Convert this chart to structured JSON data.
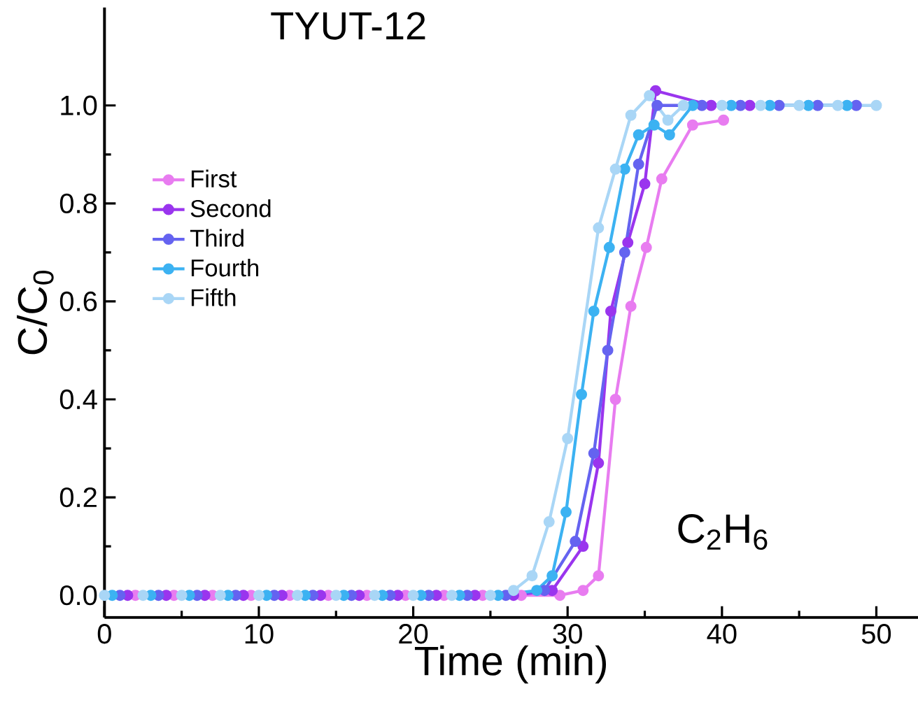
{
  "chart_data": {
    "type": "line",
    "title": "TYUT-12",
    "xlabel": "Time (min)",
    "ylabel": "C/C$_{0}$",
    "annotations": [
      "C$_{2}$H$_{6}$"
    ],
    "xlim": [
      0,
      52.7
    ],
    "ylim": [
      -0.045,
      1.2
    ],
    "xticks": [
      0,
      10,
      20,
      30,
      40,
      50
    ],
    "yticks": [
      {
        "value": 0,
        "label": "0.0"
      },
      0.2,
      0.4,
      0.6,
      0.8,
      {
        "value": 1,
        "label": "1.0"
      }
    ],
    "legend": "left",
    "marker": "circle",
    "grid": false,
    "series": [
      {
        "name": "First",
        "color": "#e87cf0",
        "x": [
          2.0,
          4.5,
          7.0,
          9.5,
          12.0,
          14.5,
          17.0,
          19.5,
          22.0,
          24.5,
          27.0,
          29.5,
          31.0,
          32.0,
          33.1,
          34.1,
          35.1,
          36.1,
          38.1,
          40.1
        ],
        "values": [
          0,
          0,
          0,
          0,
          0,
          0,
          0,
          0,
          0,
          0,
          0,
          0,
          0.01,
          0.04,
          0.4,
          0.59,
          0.71,
          0.85,
          0.96,
          0.97
        ]
      },
      {
        "name": "Second",
        "color": "#9a35ee",
        "x": [
          1.5,
          4.0,
          6.5,
          9.0,
          11.5,
          14.0,
          16.5,
          19.0,
          21.5,
          24.0,
          26.5,
          29.0,
          31.0,
          32.0,
          32.8,
          33.9,
          35.0,
          35.7,
          39.3,
          41.8
        ],
        "values": [
          0,
          0,
          0,
          0,
          0,
          0,
          0,
          0,
          0,
          0,
          0,
          0.01,
          0.1,
          0.27,
          0.58,
          0.72,
          0.84,
          1.03,
          1.0,
          1.0
        ]
      },
      {
        "name": "Third",
        "color": "#6563f0",
        "x": [
          1.0,
          3.5,
          6.0,
          8.5,
          11.0,
          13.5,
          16.0,
          18.5,
          21.0,
          23.5,
          26.0,
          28.5,
          30.5,
          31.7,
          32.6,
          33.7,
          34.6,
          35.8,
          38.7,
          41.2,
          43.7,
          46.2,
          48.7
        ],
        "values": [
          0,
          0,
          0,
          0,
          0,
          0,
          0,
          0,
          0,
          0,
          0,
          0.01,
          0.11,
          0.29,
          0.5,
          0.7,
          0.88,
          1.0,
          1.0,
          1.0,
          1.0,
          1.0,
          1.0
        ]
      },
      {
        "name": "Fourth",
        "color": "#3cb2f2",
        "x": [
          0.5,
          3.0,
          5.5,
          8.0,
          10.5,
          13.0,
          15.5,
          18.0,
          20.5,
          23.0,
          25.5,
          28.0,
          29.0,
          29.9,
          30.9,
          31.7,
          32.7,
          33.7,
          34.6,
          35.6,
          36.6,
          38.1,
          40.6,
          43.1,
          45.6,
          48.1
        ],
        "values": [
          0,
          0,
          0,
          0,
          0,
          0,
          0,
          0,
          0,
          0,
          0,
          0.01,
          0.04,
          0.17,
          0.41,
          0.58,
          0.71,
          0.87,
          0.94,
          0.96,
          0.94,
          1.0,
          1.0,
          1.0,
          1.0,
          1.0
        ]
      },
      {
        "name": "Fifth",
        "color": "#a9d6f6",
        "x": [
          0,
          2.5,
          5,
          7.5,
          10,
          12.5,
          15,
          17.5,
          20,
          22.5,
          25,
          26.5,
          27.7,
          28.8,
          30.0,
          32.0,
          33.1,
          34.1,
          35.3,
          36.5,
          37.5,
          40,
          42.5,
          45,
          47.5,
          50
        ],
        "values": [
          0,
          0,
          0,
          0,
          0,
          0,
          0,
          0,
          0,
          0,
          0,
          0.01,
          0.04,
          0.15,
          0.32,
          0.75,
          0.87,
          0.98,
          1.02,
          0.97,
          1.0,
          1.0,
          1.0,
          1.0,
          1.0,
          1.0
        ]
      }
    ]
  }
}
